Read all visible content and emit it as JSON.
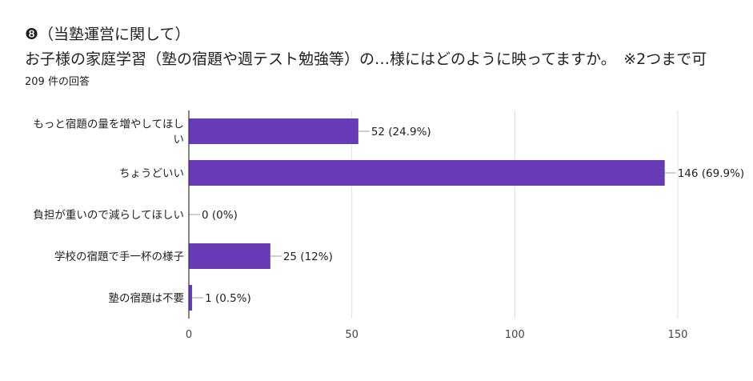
{
  "header": {
    "title": "❽（当塾運営に関して）",
    "question": "お子様の家庭学習（塾の宿題や週テスト勉強等）の…様にはどのように映ってますか。　※2つまで可",
    "response_count": "209 件の回答"
  },
  "colors": {
    "bar": "#673ab7",
    "grid": "#e0e0e0",
    "axis": "#333333",
    "text": "#202124"
  },
  "chart_data": {
    "type": "bar",
    "orientation": "horizontal",
    "categories": [
      [
        "もっと宿題の量を増やしてほし",
        "い"
      ],
      [
        "ちょうどいい"
      ],
      [
        "負担が重いので減らしてほしい"
      ],
      [
        "学校の宿題で手一杯の様子"
      ],
      [
        "塾の宿題は不要"
      ]
    ],
    "values": [
      52,
      146,
      0,
      25,
      1
    ],
    "value_labels": [
      "52 (24.9%)",
      "146 (69.9%)",
      "0 (0%)",
      "25 (12%)",
      "1 (0.5%)"
    ],
    "xlim": [
      0,
      150
    ],
    "xticks": [
      "0",
      "50",
      "100",
      "150"
    ],
    "grid": true
  }
}
